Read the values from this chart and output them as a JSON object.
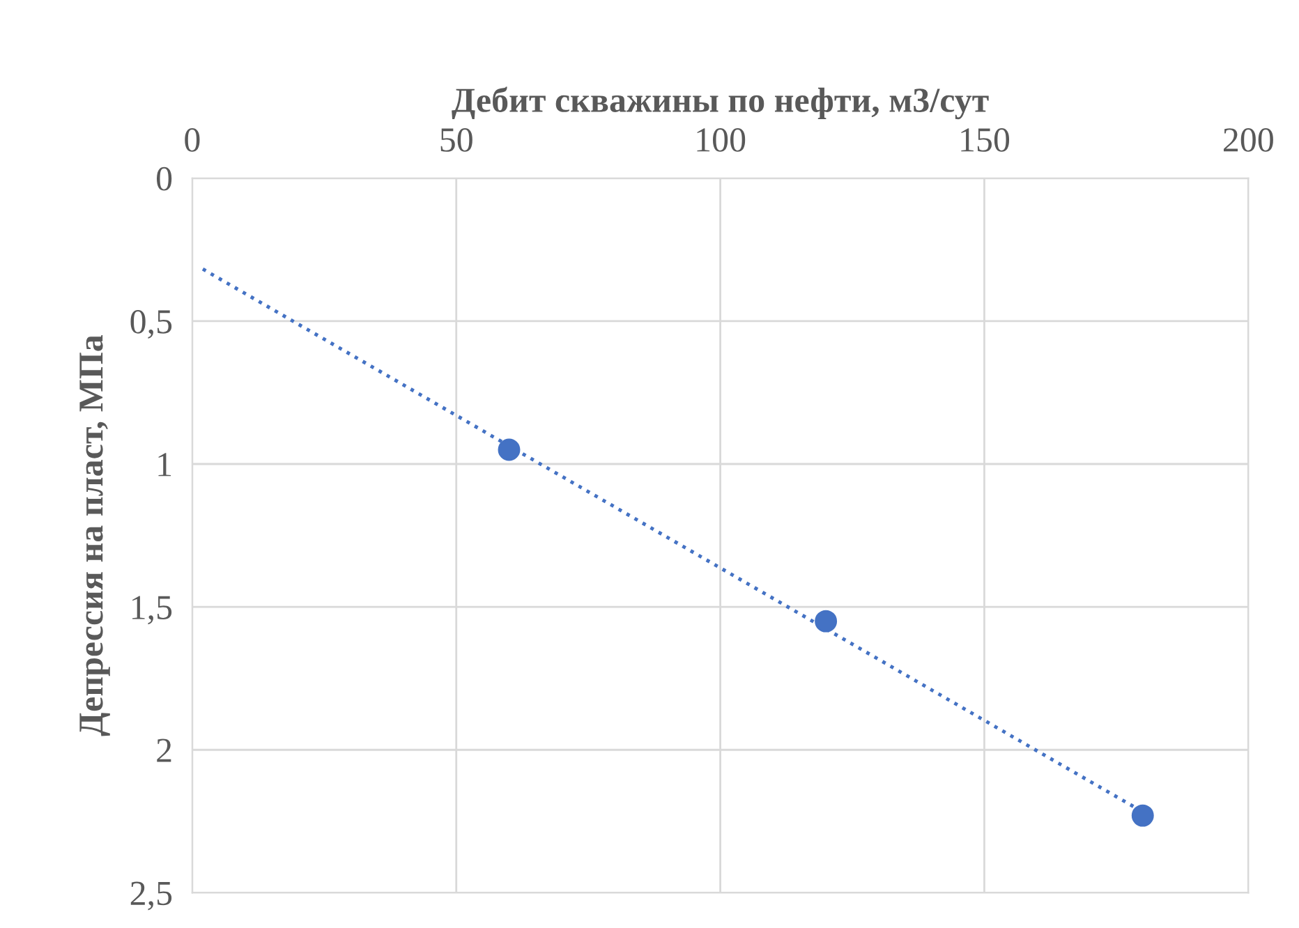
{
  "chart_data": {
    "type": "scatter",
    "xlabel": "Дебит скважины по нефти, м3/сут",
    "ylabel": "Депрессия на пласт, МПа",
    "xlim": [
      0,
      200
    ],
    "xticks": [
      0,
      50,
      100,
      150,
      200
    ],
    "ylim": [
      2.5,
      0
    ],
    "yticks": [
      0,
      {
        "value": 0.5,
        "label": "0,5"
      },
      1,
      {
        "value": 1.5,
        "label": "1,5"
      },
      2,
      {
        "value": 2.5,
        "label": "2,5"
      }
    ],
    "grid": true,
    "marker": "circle",
    "series": [
      {
        "color": "#4472c4",
        "x": [
          60,
          120,
          180
        ],
        "values": [
          0.95,
          1.55,
          2.23
        ]
      },
      {
        "type": "line",
        "color": "#4472c4",
        "line_style": "dotted",
        "marker": "none",
        "x": [
          2,
          180
        ],
        "values": [
          0.318,
          2.217
        ]
      }
    ]
  }
}
